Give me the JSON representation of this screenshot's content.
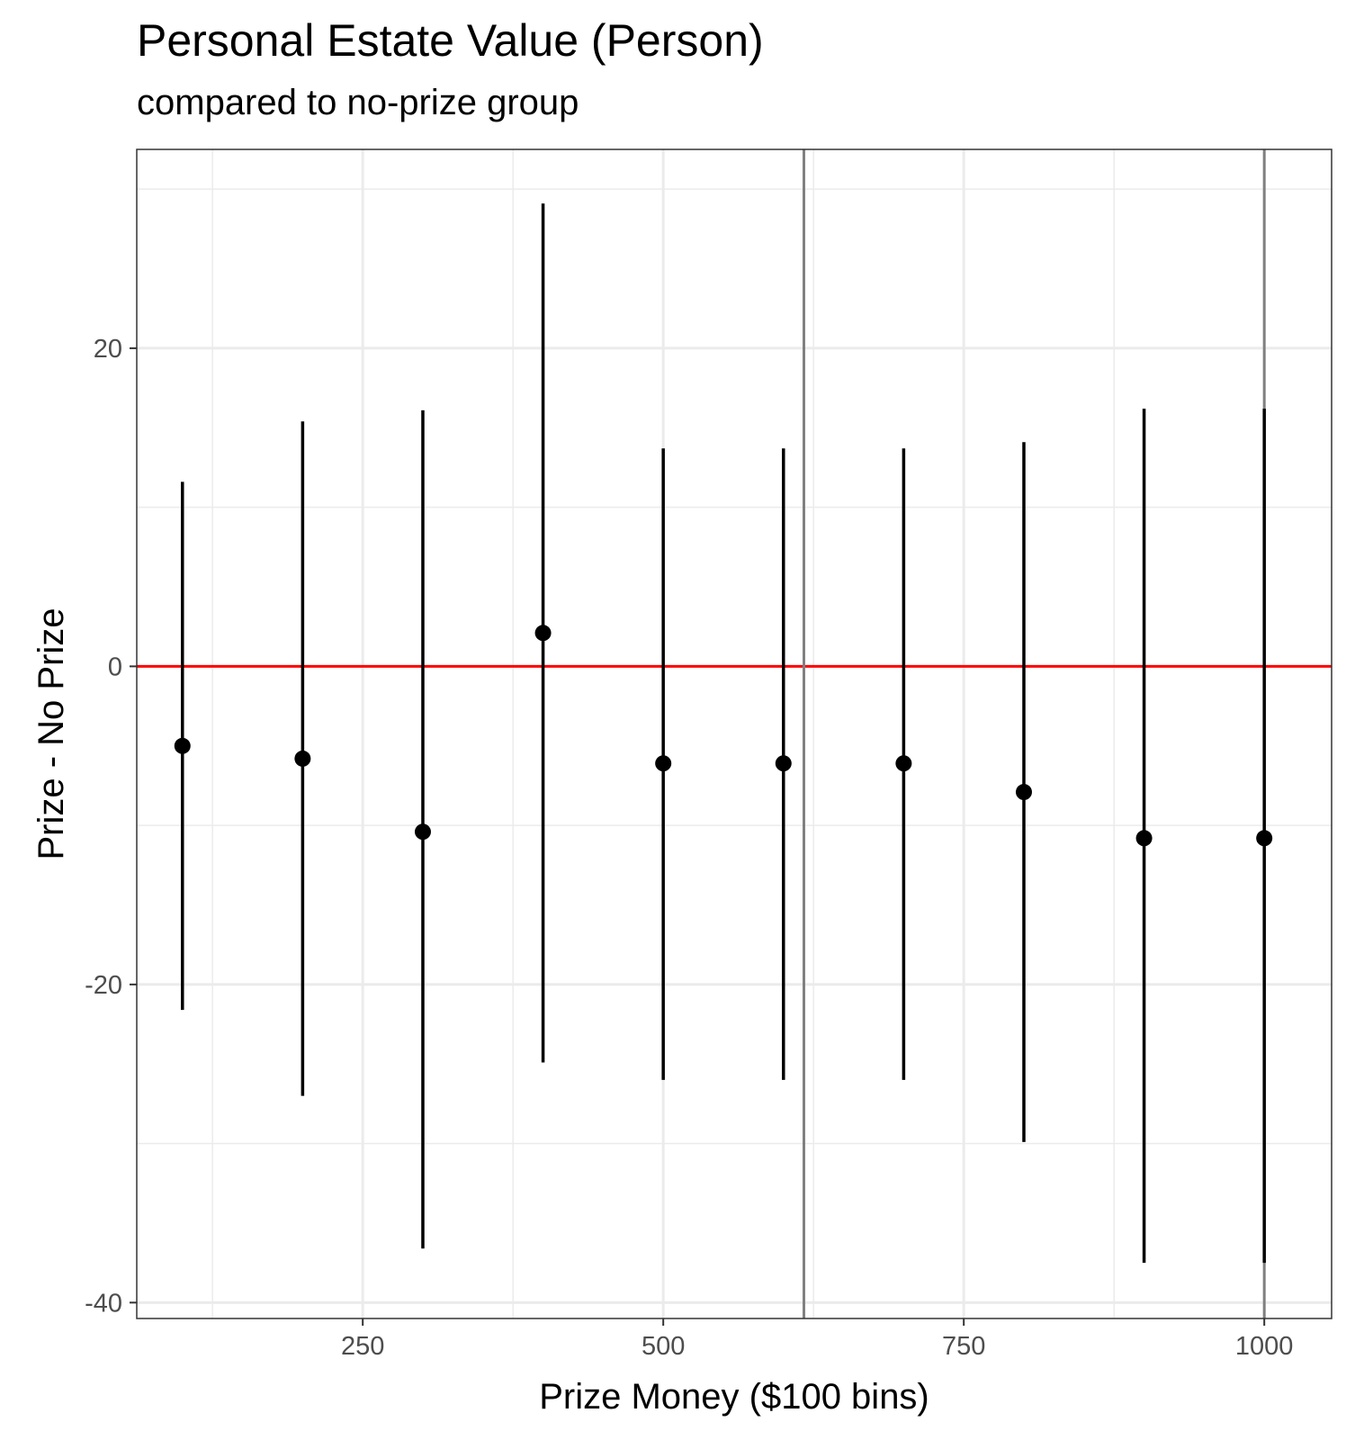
{
  "chart_data": {
    "type": "scatter",
    "title": "Personal Estate Value (Person)",
    "subtitle": "compared to no-prize group",
    "xlabel": "Prize Money ($100 bins)",
    "ylabel": "Prize - No Prize",
    "xlim": [
      62,
      1056
    ],
    "ylim": [
      -41,
      32.5
    ],
    "x_ticks": [
      250,
      500,
      750,
      1000
    ],
    "y_ticks": [
      -40,
      -20,
      0,
      20
    ],
    "grid": true,
    "points": [
      {
        "x": 100,
        "y": -5.0,
        "low": -21.6,
        "high": 11.6
      },
      {
        "x": 200,
        "y": -5.8,
        "low": -27.0,
        "high": 15.4
      },
      {
        "x": 300,
        "y": -10.4,
        "low": -36.6,
        "high": 16.1
      },
      {
        "x": 400,
        "y": 2.1,
        "low": -24.9,
        "high": 29.1
      },
      {
        "x": 500,
        "y": -6.1,
        "low": -26.0,
        "high": 13.7
      },
      {
        "x": 600,
        "y": -6.1,
        "low": -26.0,
        "high": 13.7
      },
      {
        "x": 700,
        "y": -6.1,
        "low": -26.0,
        "high": 13.7
      },
      {
        "x": 800,
        "y": -7.9,
        "low": -29.9,
        "high": 14.1
      },
      {
        "x": 900,
        "y": -10.8,
        "low": -37.5,
        "high": 16.2
      },
      {
        "x": 1000,
        "y": -10.8,
        "low": -37.5,
        "high": 16.2
      }
    ],
    "reference_lines": {
      "horizontal": {
        "y": 0,
        "color": "#ff0000"
      },
      "vertical": [
        {
          "x": 617,
          "color": "#808080"
        },
        {
          "x": 1000,
          "color": "#808080"
        }
      ]
    },
    "colors": {
      "points": "#000000",
      "grid": "#ebebeb",
      "panel_border": "#333333"
    }
  }
}
